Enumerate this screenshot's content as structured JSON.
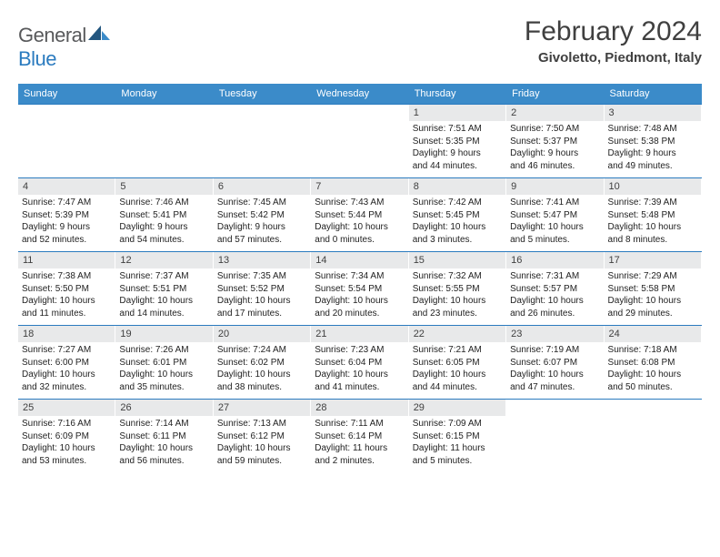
{
  "logo": {
    "brand1": "General",
    "brand2": "Blue"
  },
  "title": "February 2024",
  "location": "Givoletto, Piedmont, Italy",
  "weekdays": [
    "Sunday",
    "Monday",
    "Tuesday",
    "Wednesday",
    "Thursday",
    "Friday",
    "Saturday"
  ],
  "colors": {
    "header_bg": "#3b8bc9",
    "row_border": "#2b7bbf",
    "daynum_bg": "#e8e9ea"
  },
  "weeks": [
    [
      {
        "n": "",
        "empty": true
      },
      {
        "n": "",
        "empty": true
      },
      {
        "n": "",
        "empty": true
      },
      {
        "n": "",
        "empty": true
      },
      {
        "n": "1",
        "sr": "Sunrise: 7:51 AM",
        "ss": "Sunset: 5:35 PM",
        "d1": "Daylight: 9 hours",
        "d2": "and 44 minutes."
      },
      {
        "n": "2",
        "sr": "Sunrise: 7:50 AM",
        "ss": "Sunset: 5:37 PM",
        "d1": "Daylight: 9 hours",
        "d2": "and 46 minutes."
      },
      {
        "n": "3",
        "sr": "Sunrise: 7:48 AM",
        "ss": "Sunset: 5:38 PM",
        "d1": "Daylight: 9 hours",
        "d2": "and 49 minutes."
      }
    ],
    [
      {
        "n": "4",
        "sr": "Sunrise: 7:47 AM",
        "ss": "Sunset: 5:39 PM",
        "d1": "Daylight: 9 hours",
        "d2": "and 52 minutes."
      },
      {
        "n": "5",
        "sr": "Sunrise: 7:46 AM",
        "ss": "Sunset: 5:41 PM",
        "d1": "Daylight: 9 hours",
        "d2": "and 54 minutes."
      },
      {
        "n": "6",
        "sr": "Sunrise: 7:45 AM",
        "ss": "Sunset: 5:42 PM",
        "d1": "Daylight: 9 hours",
        "d2": "and 57 minutes."
      },
      {
        "n": "7",
        "sr": "Sunrise: 7:43 AM",
        "ss": "Sunset: 5:44 PM",
        "d1": "Daylight: 10 hours",
        "d2": "and 0 minutes."
      },
      {
        "n": "8",
        "sr": "Sunrise: 7:42 AM",
        "ss": "Sunset: 5:45 PM",
        "d1": "Daylight: 10 hours",
        "d2": "and 3 minutes."
      },
      {
        "n": "9",
        "sr": "Sunrise: 7:41 AM",
        "ss": "Sunset: 5:47 PM",
        "d1": "Daylight: 10 hours",
        "d2": "and 5 minutes."
      },
      {
        "n": "10",
        "sr": "Sunrise: 7:39 AM",
        "ss": "Sunset: 5:48 PM",
        "d1": "Daylight: 10 hours",
        "d2": "and 8 minutes."
      }
    ],
    [
      {
        "n": "11",
        "sr": "Sunrise: 7:38 AM",
        "ss": "Sunset: 5:50 PM",
        "d1": "Daylight: 10 hours",
        "d2": "and 11 minutes."
      },
      {
        "n": "12",
        "sr": "Sunrise: 7:37 AM",
        "ss": "Sunset: 5:51 PM",
        "d1": "Daylight: 10 hours",
        "d2": "and 14 minutes."
      },
      {
        "n": "13",
        "sr": "Sunrise: 7:35 AM",
        "ss": "Sunset: 5:52 PM",
        "d1": "Daylight: 10 hours",
        "d2": "and 17 minutes."
      },
      {
        "n": "14",
        "sr": "Sunrise: 7:34 AM",
        "ss": "Sunset: 5:54 PM",
        "d1": "Daylight: 10 hours",
        "d2": "and 20 minutes."
      },
      {
        "n": "15",
        "sr": "Sunrise: 7:32 AM",
        "ss": "Sunset: 5:55 PM",
        "d1": "Daylight: 10 hours",
        "d2": "and 23 minutes."
      },
      {
        "n": "16",
        "sr": "Sunrise: 7:31 AM",
        "ss": "Sunset: 5:57 PM",
        "d1": "Daylight: 10 hours",
        "d2": "and 26 minutes."
      },
      {
        "n": "17",
        "sr": "Sunrise: 7:29 AM",
        "ss": "Sunset: 5:58 PM",
        "d1": "Daylight: 10 hours",
        "d2": "and 29 minutes."
      }
    ],
    [
      {
        "n": "18",
        "sr": "Sunrise: 7:27 AM",
        "ss": "Sunset: 6:00 PM",
        "d1": "Daylight: 10 hours",
        "d2": "and 32 minutes."
      },
      {
        "n": "19",
        "sr": "Sunrise: 7:26 AM",
        "ss": "Sunset: 6:01 PM",
        "d1": "Daylight: 10 hours",
        "d2": "and 35 minutes."
      },
      {
        "n": "20",
        "sr": "Sunrise: 7:24 AM",
        "ss": "Sunset: 6:02 PM",
        "d1": "Daylight: 10 hours",
        "d2": "and 38 minutes."
      },
      {
        "n": "21",
        "sr": "Sunrise: 7:23 AM",
        "ss": "Sunset: 6:04 PM",
        "d1": "Daylight: 10 hours",
        "d2": "and 41 minutes."
      },
      {
        "n": "22",
        "sr": "Sunrise: 7:21 AM",
        "ss": "Sunset: 6:05 PM",
        "d1": "Daylight: 10 hours",
        "d2": "and 44 minutes."
      },
      {
        "n": "23",
        "sr": "Sunrise: 7:19 AM",
        "ss": "Sunset: 6:07 PM",
        "d1": "Daylight: 10 hours",
        "d2": "and 47 minutes."
      },
      {
        "n": "24",
        "sr": "Sunrise: 7:18 AM",
        "ss": "Sunset: 6:08 PM",
        "d1": "Daylight: 10 hours",
        "d2": "and 50 minutes."
      }
    ],
    [
      {
        "n": "25",
        "sr": "Sunrise: 7:16 AM",
        "ss": "Sunset: 6:09 PM",
        "d1": "Daylight: 10 hours",
        "d2": "and 53 minutes."
      },
      {
        "n": "26",
        "sr": "Sunrise: 7:14 AM",
        "ss": "Sunset: 6:11 PM",
        "d1": "Daylight: 10 hours",
        "d2": "and 56 minutes."
      },
      {
        "n": "27",
        "sr": "Sunrise: 7:13 AM",
        "ss": "Sunset: 6:12 PM",
        "d1": "Daylight: 10 hours",
        "d2": "and 59 minutes."
      },
      {
        "n": "28",
        "sr": "Sunrise: 7:11 AM",
        "ss": "Sunset: 6:14 PM",
        "d1": "Daylight: 11 hours",
        "d2": "and 2 minutes."
      },
      {
        "n": "29",
        "sr": "Sunrise: 7:09 AM",
        "ss": "Sunset: 6:15 PM",
        "d1": "Daylight: 11 hours",
        "d2": "and 5 minutes."
      },
      {
        "n": "",
        "empty": true
      },
      {
        "n": "",
        "empty": true
      }
    ]
  ]
}
